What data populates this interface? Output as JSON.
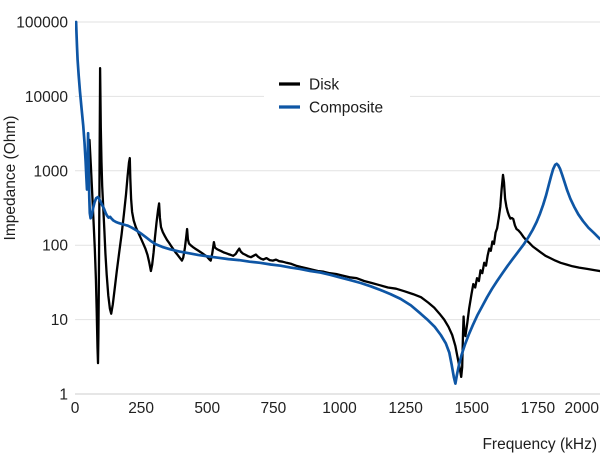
{
  "chart_data": {
    "type": "line",
    "title": "",
    "xlabel": "Frequency (kHz)",
    "ylabel": "Impedance (Ohm)",
    "x_axis": {
      "scale": "linear",
      "min": 0,
      "max": 2000,
      "unit": "kHz",
      "ticks": [
        0,
        250,
        500,
        750,
        1000,
        1250,
        1500,
        1750,
        2000
      ]
    },
    "y_axis": {
      "scale": "log",
      "min": 1,
      "max": 100000,
      "unit": "Ohm",
      "ticks": [
        1,
        10,
        100,
        1000,
        10000,
        100000
      ]
    },
    "grid": "horizontal-only",
    "legend": {
      "position": "top-center",
      "entries": [
        {
          "label": "Disk",
          "color": "#000000"
        },
        {
          "label": "Composite",
          "color": "#0e56a5"
        }
      ]
    },
    "series": [
      {
        "name": "Disk",
        "color": "#000000",
        "stroke_width": 2.3,
        "points": [
          [
            55,
            2600
          ],
          [
            60,
            1150
          ],
          [
            65,
            500
          ],
          [
            70,
            215
          ],
          [
            75,
            90
          ],
          [
            79,
            35
          ],
          [
            82,
            13
          ],
          [
            85,
            4.2
          ],
          [
            87,
            2.6
          ],
          [
            88.5,
            6
          ],
          [
            90,
            25
          ],
          [
            91.5,
            150
          ],
          [
            93,
            1500
          ],
          [
            94.5,
            12000
          ],
          [
            95,
            24000
          ],
          [
            96,
            11000
          ],
          [
            97.5,
            3800
          ],
          [
            100,
            1300
          ],
          [
            103,
            620
          ],
          [
            107,
            310
          ],
          [
            111,
            155
          ],
          [
            115,
            78
          ],
          [
            120,
            40
          ],
          [
            126,
            21
          ],
          [
            132,
            14
          ],
          [
            137,
            12
          ],
          [
            143,
            16
          ],
          [
            150,
            26
          ],
          [
            158,
            45
          ],
          [
            167,
            80
          ],
          [
            176,
            140
          ],
          [
            185,
            260
          ],
          [
            193,
            480
          ],
          [
            199,
            850
          ],
          [
            204,
            1300
          ],
          [
            207,
            1480
          ],
          [
            209,
            800
          ],
          [
            212,
            420
          ],
          [
            216,
            280
          ],
          [
            222,
            215
          ],
          [
            230,
            175
          ],
          [
            240,
            145
          ],
          [
            250,
            122
          ],
          [
            258,
            105
          ],
          [
            266,
            90
          ],
          [
            274,
            74
          ],
          [
            281,
            58
          ],
          [
            287,
            45
          ],
          [
            292,
            55
          ],
          [
            297,
            80
          ],
          [
            302,
            125
          ],
          [
            308,
            200
          ],
          [
            314,
            300
          ],
          [
            318,
            365
          ],
          [
            321,
            235
          ],
          [
            325,
            175
          ],
          [
            332,
            150
          ],
          [
            340,
            132
          ],
          [
            348,
            118
          ],
          [
            356,
            107
          ],
          [
            364,
            97
          ],
          [
            372,
            88
          ],
          [
            380,
            80
          ],
          [
            388,
            74
          ],
          [
            396,
            68
          ],
          [
            404,
            62
          ],
          [
            409,
            68
          ],
          [
            415,
            90
          ],
          [
            420,
            125
          ],
          [
            424,
            165
          ],
          [
            427,
            120
          ],
          [
            431,
            105
          ],
          [
            437,
            100
          ],
          [
            445,
            95
          ],
          [
            454,
            90
          ],
          [
            463,
            86
          ],
          [
            472,
            82
          ],
          [
            481,
            78
          ],
          [
            490,
            74
          ],
          [
            499,
            70
          ],
          [
            507,
            65
          ],
          [
            513,
            62
          ],
          [
            519,
            78
          ],
          [
            525,
            110
          ],
          [
            529,
            93
          ],
          [
            536,
            89
          ],
          [
            544,
            86
          ],
          [
            553,
            83
          ],
          [
            562,
            80
          ],
          [
            571,
            78
          ],
          [
            580,
            76
          ],
          [
            589,
            74
          ],
          [
            598,
            72
          ],
          [
            607,
            76
          ],
          [
            615,
            84
          ],
          [
            621,
            90
          ],
          [
            627,
            82
          ],
          [
            635,
            77
          ],
          [
            645,
            74
          ],
          [
            655,
            71
          ],
          [
            665,
            69
          ],
          [
            675,
            72
          ],
          [
            684,
            75
          ],
          [
            692,
            70
          ],
          [
            702,
            66
          ],
          [
            712,
            64
          ],
          [
            724,
            67
          ],
          [
            736,
            63
          ],
          [
            748,
            62
          ],
          [
            760,
            64
          ],
          [
            772,
            61
          ],
          [
            785,
            60
          ],
          [
            800,
            58
          ],
          [
            818,
            56
          ],
          [
            836,
            53
          ],
          [
            855,
            51
          ],
          [
            875,
            49
          ],
          [
            896,
            47
          ],
          [
            918,
            45
          ],
          [
            940,
            44
          ],
          [
            963,
            42
          ],
          [
            987,
            41
          ],
          [
            1012,
            39
          ],
          [
            1038,
            37
          ],
          [
            1065,
            36
          ],
          [
            1093,
            33
          ],
          [
            1122,
            31
          ],
          [
            1152,
            29
          ],
          [
            1183,
            27
          ],
          [
            1214,
            26
          ],
          [
            1246,
            24
          ],
          [
            1278,
            22
          ],
          [
            1308,
            20
          ],
          [
            1335,
            17
          ],
          [
            1358,
            14.5
          ],
          [
            1378,
            12
          ],
          [
            1396,
            10
          ],
          [
            1412,
            8
          ],
          [
            1426,
            6.2
          ],
          [
            1438,
            4.4
          ],
          [
            1448,
            2.9
          ],
          [
            1455,
            2.2
          ],
          [
            1460,
            1.7
          ],
          [
            1464,
            2.3
          ],
          [
            1467,
            6.5
          ],
          [
            1469,
            11
          ],
          [
            1472,
            7
          ],
          [
            1476,
            6
          ],
          [
            1483,
            9
          ],
          [
            1490,
            14
          ],
          [
            1499,
            22
          ],
          [
            1506,
            30
          ],
          [
            1513,
            27
          ],
          [
            1520,
            36
          ],
          [
            1527,
            33
          ],
          [
            1533,
            46
          ],
          [
            1540,
            42
          ],
          [
            1547,
            58
          ],
          [
            1554,
            53
          ],
          [
            1560,
            72
          ],
          [
            1566,
            90
          ],
          [
            1572,
            84
          ],
          [
            1578,
            112
          ],
          [
            1584,
            104
          ],
          [
            1590,
            148
          ],
          [
            1596,
            168
          ],
          [
            1602,
            230
          ],
          [
            1608,
            330
          ],
          [
            1613,
            560
          ],
          [
            1618,
            880
          ],
          [
            1622,
            700
          ],
          [
            1626,
            420
          ],
          [
            1631,
            330
          ],
          [
            1636,
            280
          ],
          [
            1641,
            250
          ],
          [
            1646,
            228
          ],
          [
            1651,
            232
          ],
          [
            1657,
            224
          ],
          [
            1663,
            185
          ],
          [
            1669,
            165
          ],
          [
            1677,
            157
          ],
          [
            1685,
            146
          ],
          [
            1695,
            130
          ],
          [
            1705,
            118
          ],
          [
            1717,
            108
          ],
          [
            1731,
            96
          ],
          [
            1745,
            88
          ],
          [
            1761,
            80
          ],
          [
            1779,
            72
          ],
          [
            1797,
            67
          ],
          [
            1816,
            62
          ],
          [
            1836,
            58
          ],
          [
            1858,
            55
          ],
          [
            1881,
            52
          ],
          [
            1906,
            50
          ],
          [
            1936,
            48
          ],
          [
            1966,
            46
          ],
          [
            2000,
            44
          ]
        ]
      },
      {
        "name": "Composite",
        "color": "#0e56a5",
        "stroke_width": 2.7,
        "points": [
          [
            4,
            100000
          ],
          [
            5.5,
            70000
          ],
          [
            7.5,
            47000
          ],
          [
            10,
            31000
          ],
          [
            14,
            19000
          ],
          [
            19,
            11500
          ],
          [
            25,
            6800
          ],
          [
            31,
            4100
          ],
          [
            36,
            2400
          ],
          [
            40,
            1350
          ],
          [
            43,
            800
          ],
          [
            45.5,
            560
          ],
          [
            47,
            700
          ],
          [
            48.5,
            1600
          ],
          [
            49.5,
            3200
          ],
          [
            50.5,
            1800
          ],
          [
            52,
            900
          ],
          [
            54,
            430
          ],
          [
            56,
            270
          ],
          [
            59,
            230
          ],
          [
            63,
            250
          ],
          [
            68,
            310
          ],
          [
            74,
            380
          ],
          [
            80,
            430
          ],
          [
            87,
            445
          ],
          [
            94,
            400
          ],
          [
            100,
            360
          ],
          [
            106,
            330
          ],
          [
            111,
            300
          ],
          [
            116,
            270
          ],
          [
            121,
            250
          ],
          [
            127,
            235
          ],
          [
            133,
            240
          ],
          [
            138,
            228
          ],
          [
            145,
            215
          ],
          [
            155,
            205
          ],
          [
            166,
            198
          ],
          [
            178,
            192
          ],
          [
            190,
            187
          ],
          [
            200,
            183
          ],
          [
            215,
            172
          ],
          [
            232,
            158
          ],
          [
            250,
            143
          ],
          [
            268,
            128
          ],
          [
            285,
            115
          ],
          [
            305,
            103
          ],
          [
            330,
            95
          ],
          [
            360,
            88
          ],
          [
            395,
            82
          ],
          [
            430,
            78
          ],
          [
            465,
            74
          ],
          [
            500,
            71
          ],
          [
            540,
            68
          ],
          [
            580,
            65
          ],
          [
            620,
            63
          ],
          [
            660,
            60
          ],
          [
            700,
            58
          ],
          [
            740,
            55
          ],
          [
            777,
            53
          ],
          [
            815,
            50
          ],
          [
            850,
            48
          ],
          [
            890,
            45
          ],
          [
            928,
            43
          ],
          [
            965,
            40
          ],
          [
            1000,
            37
          ],
          [
            1040,
            34
          ],
          [
            1080,
            31
          ],
          [
            1118,
            28
          ],
          [
            1155,
            25
          ],
          [
            1193,
            22
          ],
          [
            1231,
            19
          ],
          [
            1270,
            15.5
          ],
          [
            1307,
            12
          ],
          [
            1335,
            9.8
          ],
          [
            1360,
            8
          ],
          [
            1383,
            6.2
          ],
          [
            1402,
            4.8
          ],
          [
            1415,
            3.6
          ],
          [
            1424,
            2.5
          ],
          [
            1432,
            1.7
          ],
          [
            1438,
            1.38
          ],
          [
            1444,
            1.8
          ],
          [
            1452,
            2.5
          ],
          [
            1462,
            3.4
          ],
          [
            1474,
            4.6
          ],
          [
            1488,
            6.2
          ],
          [
            1504,
            8.4
          ],
          [
            1521,
            11.4
          ],
          [
            1539,
            15
          ],
          [
            1558,
            20
          ],
          [
            1577,
            26
          ],
          [
            1596,
            33
          ],
          [
            1616,
            42
          ],
          [
            1636,
            53
          ],
          [
            1656,
            66
          ],
          [
            1676,
            82
          ],
          [
            1696,
            102
          ],
          [
            1714,
            128
          ],
          [
            1730,
            160
          ],
          [
            1745,
            205
          ],
          [
            1758,
            265
          ],
          [
            1770,
            350
          ],
          [
            1781,
            470
          ],
          [
            1791,
            640
          ],
          [
            1800,
            850
          ],
          [
            1808,
            1060
          ],
          [
            1815,
            1200
          ],
          [
            1821,
            1240
          ],
          [
            1827,
            1190
          ],
          [
            1834,
            1060
          ],
          [
            1842,
            880
          ],
          [
            1851,
            700
          ],
          [
            1861,
            545
          ],
          [
            1873,
            420
          ],
          [
            1887,
            330
          ],
          [
            1903,
            260
          ],
          [
            1921,
            210
          ],
          [
            1941,
            172
          ],
          [
            1963,
            145
          ],
          [
            1984,
            122
          ],
          [
            2000,
            112
          ]
        ]
      }
    ],
    "annotations": {
      "disk_resonance_min_ohm": 1.7,
      "disk_antiresonance_peak_ohm": 24000,
      "composite_resonance_min_ohm": 1.4,
      "composite_antiresonance_peak_ohm": 1240
    }
  },
  "colors": {
    "background": "#ffffff",
    "gridline": "#e2e2e2",
    "axis_line": "#cccccc",
    "text": "#212121"
  }
}
